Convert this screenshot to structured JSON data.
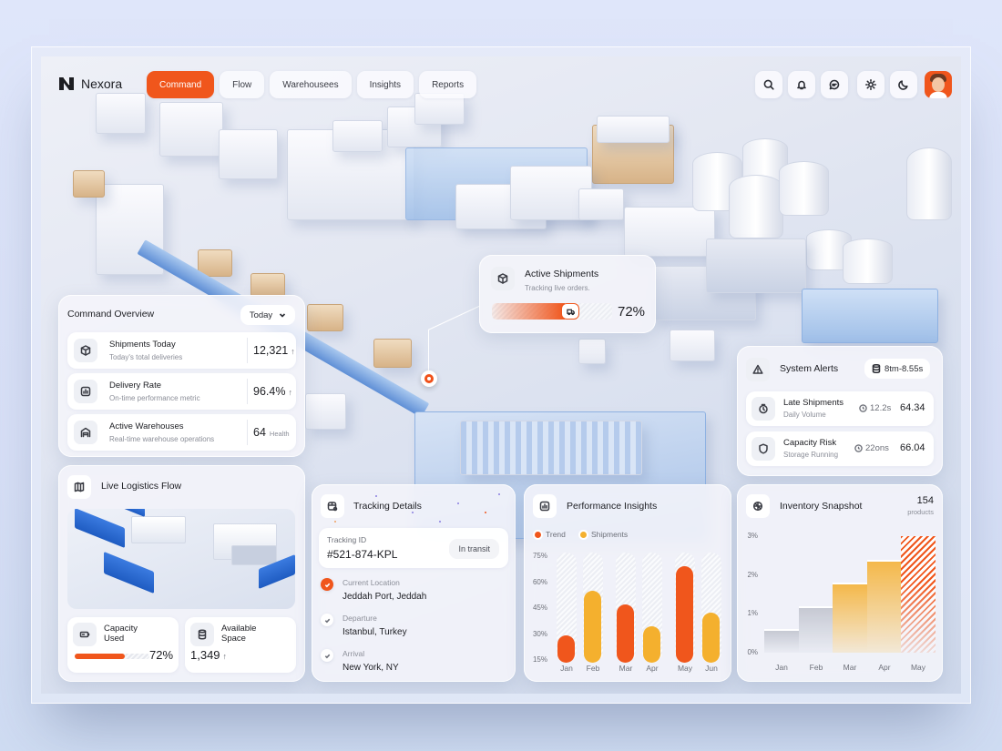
{
  "app": {
    "name": "Nexora"
  },
  "nav": {
    "tabs": [
      {
        "label": "Command",
        "active": true
      },
      {
        "label": "Flow",
        "active": false
      },
      {
        "label": "Warehousees",
        "active": false
      },
      {
        "label": "Insights",
        "active": false
      },
      {
        "label": "Reports",
        "active": false
      }
    ],
    "icons": [
      "search-icon",
      "bell-icon",
      "chat-icon",
      "sun-icon",
      "moon-icon"
    ],
    "avatar": "user-avatar"
  },
  "colors": {
    "accent": "#f0561c",
    "secondary": "#f4b02e",
    "text": "#1c1d22",
    "muted": "#8b8e98"
  },
  "command_overview": {
    "title": "Command Overview",
    "range": "Today",
    "rows": [
      {
        "title": "Shipments Today",
        "subtitle": "Today's total deliveries",
        "value": "12,321",
        "trend": "↑",
        "icon": "box-icon"
      },
      {
        "title": "Delivery Rate",
        "subtitle": "On-time performance metric",
        "value": "96.4%",
        "trend": "↑",
        "icon": "chart-icon"
      },
      {
        "title": "Active Warehouses",
        "subtitle": "Real-time warehouse operations",
        "value": "64",
        "suffix": "Health",
        "icon": "warehouse-icon"
      }
    ]
  },
  "active_shipments": {
    "title": "Active Shipments",
    "subtitle": "Tracking live orders.",
    "percent": "72%",
    "progress": 72
  },
  "system_alerts": {
    "title": "System Alerts",
    "range": "8tm-8.55s",
    "items": [
      {
        "title": "Late Shipments",
        "subtitle": "Daily Volume",
        "time": "12.2s",
        "value": "64.34",
        "icon": "clock-alert-icon"
      },
      {
        "title": "Capacity Risk",
        "subtitle": "Storage Running",
        "time": "22ons",
        "value": "66.04",
        "icon": "shield-icon"
      }
    ]
  },
  "logistics": {
    "title": "Live Logistics Flow",
    "capacity": {
      "label_line1": "Capacity",
      "label_line2": "Used",
      "value": "72%",
      "progress": 72
    },
    "space": {
      "label_line1": "Available",
      "label_line2": "Space",
      "value": "1,349",
      "trend": "↑"
    }
  },
  "tracking": {
    "title": "Tracking Details",
    "id_label": "Tracking ID",
    "id": "#521-874-KPL",
    "status": "In transit",
    "steps": [
      {
        "label": "Current Location",
        "value": "Jeddah Port, Jeddah",
        "done": true
      },
      {
        "label": "Departure",
        "value": "Istanbul, Turkey",
        "done": false
      },
      {
        "label": "Arrival",
        "value": "New York, NY",
        "done": false
      }
    ]
  },
  "performance": {
    "title": "Performance Insights",
    "legend": [
      "Trend",
      "Shipments"
    ]
  },
  "inventory": {
    "title": "Inventory Snapshot",
    "count": "154",
    "count_label": "products"
  },
  "chart_data": [
    {
      "type": "bar",
      "title": "Performance Insights",
      "categories": [
        "Jan",
        "Feb",
        "Mar",
        "Apr",
        "May",
        "Jun"
      ],
      "series": [
        {
          "name": "Trend",
          "color": "#f0561c",
          "values": [
            29,
            null,
            47,
            null,
            69,
            null
          ]
        },
        {
          "name": "Shipments",
          "color": "#f4b02e",
          "values": [
            null,
            55,
            null,
            34,
            null,
            42
          ]
        }
      ],
      "values": [
        29,
        55,
        47,
        34,
        69,
        42
      ],
      "bar_colors": [
        "#f0561c",
        "#f4b02e",
        "#f0561c",
        "#f4b02e",
        "#f0561c",
        "#f4b02e"
      ],
      "yticks": [
        "75%",
        "60%",
        "45%",
        "30%",
        "15%"
      ],
      "ylim": [
        15,
        75
      ],
      "xlabel": "",
      "ylabel": "",
      "legend_position": "top-left",
      "grid": false
    },
    {
      "type": "bar",
      "title": "Inventory Snapshot",
      "categories": [
        "Jan",
        "Feb",
        "Mar",
        "Apr",
        "May"
      ],
      "values": [
        0.6,
        1.2,
        1.8,
        2.4,
        3.0
      ],
      "bar_colors": [
        "#c9ccd6",
        "#c9ccd6",
        "#f4b02e",
        "#f4b02e",
        "#f0561c"
      ],
      "yticks": [
        "3%",
        "2%",
        "1%",
        "0%"
      ],
      "ylim": [
        0,
        3
      ],
      "xlabel": "",
      "ylabel": "",
      "grid": false
    }
  ]
}
